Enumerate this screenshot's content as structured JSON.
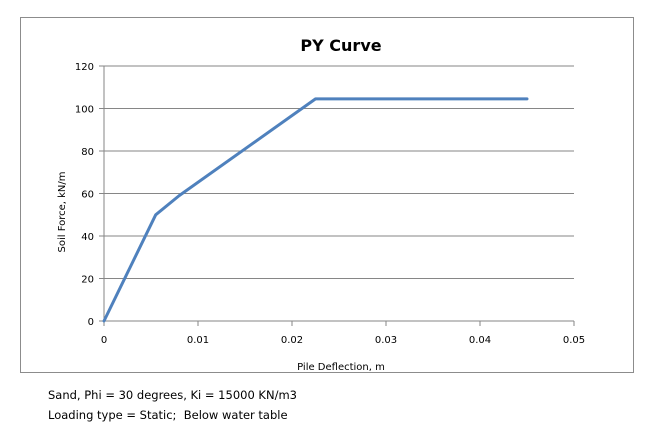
{
  "chart_data": {
    "type": "line",
    "title": "PY Curve",
    "xlabel": "Pile Deflection, m",
    "ylabel": "Soil Force, kN/m",
    "xlim": [
      0,
      0.05
    ],
    "ylim": [
      0,
      120
    ],
    "x_ticks": [
      "0",
      "0.01",
      "0.02",
      "0.03",
      "0.04",
      "0.05"
    ],
    "y_ticks": [
      "0",
      "20",
      "40",
      "60",
      "80",
      "100",
      "120"
    ],
    "x_tick_values": [
      0,
      0.01,
      0.02,
      0.03,
      0.04,
      0.05
    ],
    "y_tick_values": [
      0,
      20,
      40,
      60,
      80,
      100,
      120
    ],
    "grid": "horizontal major gridlines",
    "legend": "none",
    "series": [
      {
        "color": "#4F81BD",
        "x": [
          0,
          0.0055,
          0.008,
          0.0225,
          0.045
        ],
        "y": [
          0,
          50,
          59,
          104.5,
          104.5
        ]
      }
    ]
  },
  "notes": {
    "line1": "Sand, Phi = 30 degrees, Ki = 15000 KN/m3",
    "line2": "Loading type = Static;  Below water table"
  }
}
